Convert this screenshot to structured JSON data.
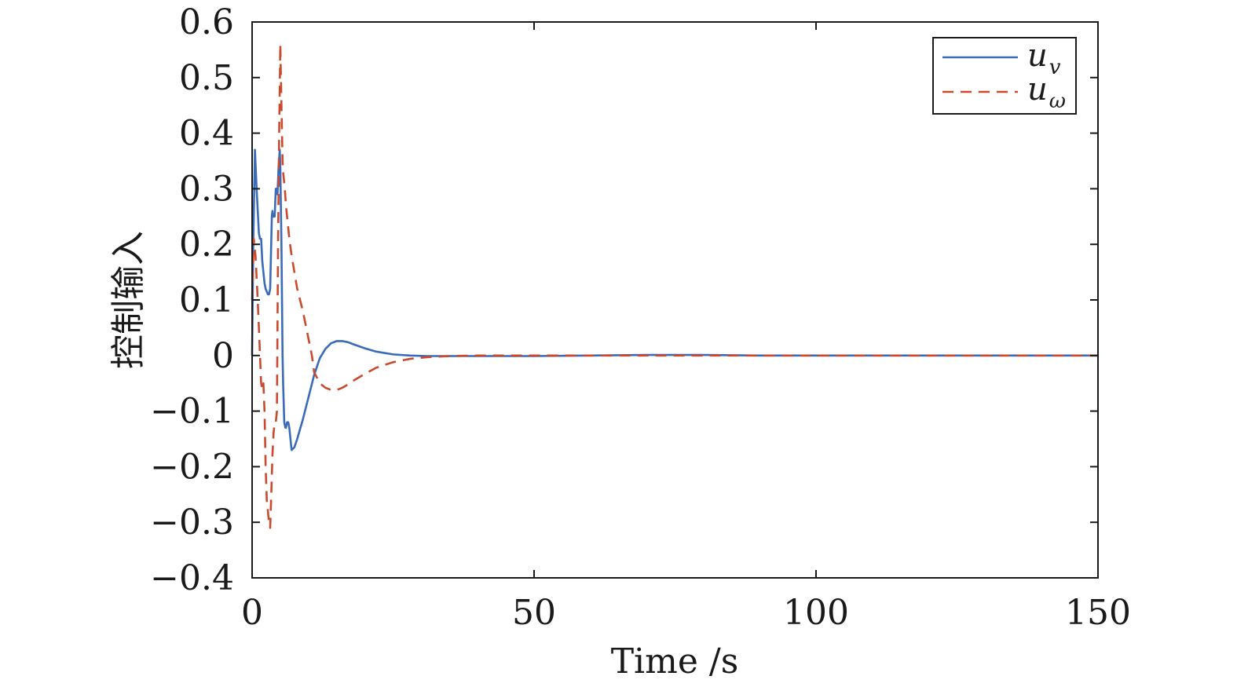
{
  "chart_data": {
    "type": "line",
    "title": "",
    "xlabel": "Time /s",
    "ylabel": "控制输入",
    "xlim": [
      0,
      150
    ],
    "ylim": [
      -0.4,
      0.6
    ],
    "xticks": [
      0,
      50,
      100,
      150
    ],
    "xtick_labels": [
      "0",
      "50",
      "100",
      "150"
    ],
    "yticks": [
      0.6,
      0.5,
      0.4,
      0.3,
      0.2,
      0.1,
      0,
      -0.1,
      -0.2,
      -0.3,
      -0.4
    ],
    "ytick_labels": [
      "0.6",
      "0.5",
      "0.4",
      "0.3",
      "0.2",
      "0.1",
      "0",
      "−0.1",
      "−0.2",
      "−0.3",
      "−0.4"
    ],
    "grid": false,
    "legend_position": "top-right",
    "series": [
      {
        "name": "u_v",
        "legend_main": "u",
        "legend_sub": "v",
        "color": "#3a6bb8",
        "dash": "solid",
        "x": [
          0,
          0.2,
          0.5,
          0.8,
          1.0,
          1.2,
          1.4,
          1.6,
          1.8,
          2.0,
          2.2,
          2.4,
          2.6,
          2.8,
          3.0,
          3.2,
          3.5,
          3.6,
          3.7,
          4.0,
          4.2,
          4.4,
          4.5,
          4.7,
          4.9,
          5.0,
          5.2,
          5.4,
          5.5,
          5.7,
          5.9,
          6.0,
          6.2,
          6.4,
          6.6,
          7.0,
          7.5,
          8.0,
          9.0,
          10.0,
          11.0,
          12.0,
          13.0,
          14.0,
          15.0,
          16.0,
          17.0,
          18.0,
          20.0,
          22.0,
          25.0,
          28.0,
          31.0,
          35.0,
          40.0,
          50.0,
          60.0,
          70.0,
          80.0,
          90.0,
          100.0,
          110.0,
          120.0,
          130.0,
          140.0,
          150.0
        ],
        "y": [
          0.0,
          0.2,
          0.37,
          0.3,
          0.26,
          0.22,
          0.21,
          0.21,
          0.17,
          0.15,
          0.13,
          0.12,
          0.115,
          0.11,
          0.11,
          0.12,
          0.25,
          0.26,
          0.25,
          0.25,
          0.3,
          0.3,
          0.29,
          0.34,
          0.37,
          0.34,
          0.2,
          0.0,
          -0.05,
          -0.12,
          -0.13,
          -0.13,
          -0.12,
          -0.12,
          -0.13,
          -0.17,
          -0.165,
          -0.15,
          -0.115,
          -0.075,
          -0.035,
          -0.005,
          0.012,
          0.022,
          0.026,
          0.026,
          0.024,
          0.02,
          0.013,
          0.007,
          0.002,
          0.0,
          -0.001,
          -0.001,
          -0.001,
          -0.001,
          0.0,
          0.001,
          0.001,
          0.0,
          0.0,
          0.0,
          0.0,
          0.0,
          0.0,
          0.0
        ]
      },
      {
        "name": "u_ω",
        "legend_main": "u",
        "legend_sub": "ω",
        "color": "#c94a2e",
        "dash": "dashed",
        "x": [
          0,
          0.3,
          0.6,
          0.9,
          1.2,
          1.4,
          1.6,
          1.8,
          2.0,
          2.2,
          2.4,
          2.6,
          2.8,
          3.0,
          3.2,
          3.4,
          3.6,
          3.8,
          4.0,
          4.2,
          4.4,
          4.6,
          4.8,
          5.0,
          5.2,
          5.4,
          5.5,
          5.8,
          6.0,
          6.3,
          6.6,
          7.0,
          7.5,
          8.0,
          9.0,
          10.0,
          10.6,
          11.0,
          12.0,
          13.0,
          14.0,
          15.0,
          16.0,
          17.0,
          18.0,
          20.0,
          22.0,
          25.0,
          28.0,
          31.0,
          35.0,
          40.0,
          50.0,
          60.0,
          70.0,
          80.0,
          90.0,
          100.0,
          110.0,
          120.0,
          130.0,
          140.0,
          150.0
        ],
        "y": [
          0.1,
          0.21,
          0.18,
          0.12,
          0.05,
          0.0,
          -0.05,
          -0.06,
          -0.05,
          -0.1,
          -0.2,
          -0.26,
          -0.28,
          -0.3,
          -0.31,
          -0.25,
          -0.18,
          -0.14,
          -0.12,
          -0.12,
          -0.1,
          0.2,
          0.4,
          0.56,
          0.45,
          0.35,
          0.33,
          0.3,
          0.27,
          0.24,
          0.21,
          0.18,
          0.15,
          0.12,
          0.08,
          0.03,
          0.0,
          -0.03,
          -0.05,
          -0.058,
          -0.062,
          -0.062,
          -0.058,
          -0.052,
          -0.045,
          -0.033,
          -0.022,
          -0.012,
          -0.006,
          -0.003,
          -0.001,
          0.0,
          0.0,
          0.0,
          0.0,
          0.0,
          0.0,
          0.0,
          0.0,
          0.0,
          0.0,
          0.0,
          0.0
        ]
      }
    ]
  }
}
